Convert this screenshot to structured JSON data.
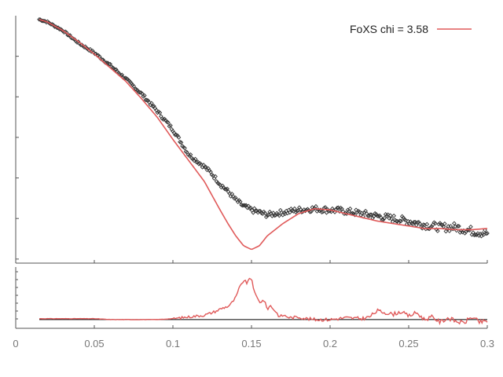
{
  "chart_data": [
    {
      "type": "line",
      "panel": "fit",
      "legend": {
        "label": "FoXS chi = 3.58",
        "placement": "top-right",
        "color": "#e05a5a"
      },
      "xlim": [
        0,
        0.3
      ],
      "ylim": [
        0,
        1
      ],
      "y_ticks": "unlabeled",
      "series": [
        {
          "name": "",
          "style": "points",
          "color": "#333333",
          "x": [
            0.015,
            0.02,
            0.03,
            0.04,
            0.05,
            0.06,
            0.07,
            0.08,
            0.09,
            0.1,
            0.11,
            0.12,
            0.125,
            0.13,
            0.135,
            0.14,
            0.145,
            0.15,
            0.155,
            0.16,
            0.17,
            0.18,
            0.19,
            0.2,
            0.21,
            0.22,
            0.23,
            0.24,
            0.25,
            0.26,
            0.27,
            0.28,
            0.29,
            0.3
          ],
          "y": [
            0.985,
            0.975,
            0.94,
            0.89,
            0.85,
            0.8,
            0.745,
            0.685,
            0.615,
            0.54,
            0.44,
            0.39,
            0.36,
            0.32,
            0.29,
            0.255,
            0.23,
            0.215,
            0.205,
            0.195,
            0.205,
            0.215,
            0.22,
            0.215,
            0.21,
            0.2,
            0.19,
            0.18,
            0.17,
            0.155,
            0.145,
            0.145,
            0.13,
            0.12
          ]
        },
        {
          "name": "FoXS chi = 3.58",
          "style": "line",
          "color": "#e05a5a",
          "x": [
            0.015,
            0.02,
            0.03,
            0.04,
            0.05,
            0.06,
            0.07,
            0.08,
            0.09,
            0.1,
            0.11,
            0.12,
            0.13,
            0.135,
            0.14,
            0.145,
            0.15,
            0.155,
            0.16,
            0.17,
            0.18,
            0.19,
            0.2,
            0.21,
            0.22,
            0.23,
            0.24,
            0.25,
            0.26,
            0.27,
            0.28,
            0.29,
            0.3
          ],
          "y": [
            0.985,
            0.975,
            0.94,
            0.895,
            0.845,
            0.79,
            0.735,
            0.665,
            0.59,
            0.5,
            0.415,
            0.33,
            0.215,
            0.16,
            0.11,
            0.07,
            0.055,
            0.07,
            0.11,
            0.16,
            0.2,
            0.22,
            0.215,
            0.2,
            0.185,
            0.17,
            0.16,
            0.15,
            0.14,
            0.14,
            0.135,
            0.135,
            0.14
          ]
        }
      ]
    },
    {
      "type": "line",
      "panel": "residuals",
      "xlim": [
        0,
        0.3
      ],
      "ylim": [
        -1,
        6
      ],
      "y_ticks": "unlabeled",
      "x_ticks": [
        "0",
        "0.05",
        "0.1",
        "0.15",
        "0.2",
        "0.25",
        "0.3"
      ],
      "x_tick_values": [
        0,
        0.05,
        0.1,
        0.15,
        0.2,
        0.25,
        0.3
      ],
      "baseline": 0,
      "series": [
        {
          "name": "",
          "color": "#e05a5a",
          "x": [
            0.015,
            0.03,
            0.05,
            0.06,
            0.08,
            0.09,
            0.1,
            0.105,
            0.11,
            0.115,
            0.12,
            0.125,
            0.128,
            0.13,
            0.133,
            0.135,
            0.137,
            0.14,
            0.142,
            0.145,
            0.147,
            0.15,
            0.152,
            0.155,
            0.158,
            0.16,
            0.162,
            0.165,
            0.168,
            0.17,
            0.175,
            0.18,
            0.185,
            0.19,
            0.2,
            0.21,
            0.22,
            0.225,
            0.23,
            0.235,
            0.24,
            0.245,
            0.25,
            0.255,
            0.26,
            0.265,
            0.27,
            0.275,
            0.28,
            0.285,
            0.29,
            0.295,
            0.3
          ],
          "y": [
            0.1,
            0.1,
            0.1,
            0.0,
            0.0,
            0.0,
            0.1,
            0.2,
            0.3,
            0.4,
            0.5,
            0.8,
            1.0,
            1.2,
            1.4,
            1.5,
            1.8,
            2.5,
            3.5,
            4.5,
            4.2,
            4.8,
            3.0,
            2.0,
            2.2,
            1.2,
            1.6,
            1.0,
            0.3,
            0.5,
            0.2,
            0.3,
            0.1,
            0.0,
            0.0,
            0.2,
            0.1,
            0.3,
            1.0,
            0.8,
            0.6,
            0.9,
            0.4,
            0.8,
            0.0,
            0.3,
            -0.3,
            0.2,
            -0.2,
            -0.4,
            0.3,
            -0.3,
            -0.2
          ]
        }
      ]
    }
  ]
}
